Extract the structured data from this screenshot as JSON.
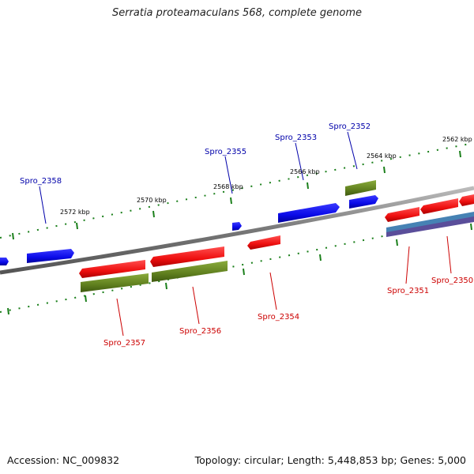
{
  "title": "Serratia proteamaculans 568, complete genome",
  "footer": {
    "accession": "Accession: NC_009832",
    "summary": "Topology: circular; Length: 5,448,853 bp; Genes: 5,000"
  },
  "colors": {
    "forward_cds": "#1010ff",
    "reverse_cds": "#ff1a1a",
    "reverse_label": "#cc0000",
    "forward_label": "#0000aa",
    "rna": "#6b8e23",
    "backbone": "#888888",
    "tick": "#1a7f1a",
    "track_blue": "#4682b4",
    "track_purple": "#5a4e9a"
  },
  "kbp_labels": [
    "2572 kbp",
    "2570 kbp",
    "2568 kbp",
    "2566 kbp",
    "2564 kbp",
    "2562 kbp"
  ],
  "forward_gene_labels": [
    "Spro_2358",
    "Spro_2355",
    "Spro_2353",
    "Spro_2352"
  ],
  "reverse_gene_labels": [
    "Spro_2357",
    "Spro_2356",
    "Spro_2354",
    "Spro_2351",
    "Spro_2350"
  ]
}
